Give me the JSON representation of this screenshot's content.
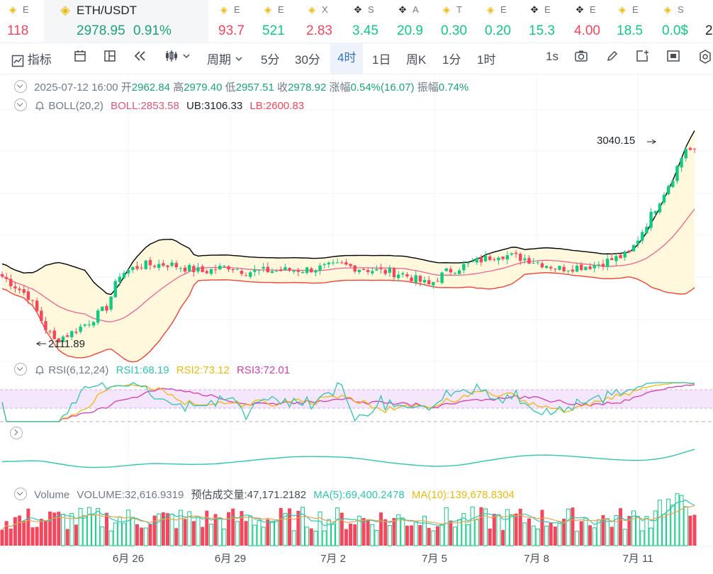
{
  "ticker": {
    "items": [
      {
        "icon": "bnb",
        "name": "E",
        "value": "118",
        "dir": "dn"
      },
      {
        "icon": "bnb",
        "name": "ETH/USDT",
        "value": "2978.95",
        "pct": "0.91%",
        "dir": "up",
        "active": true
      },
      {
        "icon": "bnb",
        "name": "E",
        "value": "93.7",
        "dir": "dn"
      },
      {
        "icon": "bnb",
        "name": "E",
        "value": "521",
        "dir": "up"
      },
      {
        "icon": "bnb",
        "name": "X",
        "value": "2.83",
        "dir": "dn"
      },
      {
        "icon": "ok",
        "name": "S",
        "value": "3.45",
        "dir": "up"
      },
      {
        "icon": "ok",
        "name": "A",
        "value": "20.9",
        "dir": "up"
      },
      {
        "icon": "bnb",
        "name": "T",
        "value": "0.30",
        "dir": "up"
      },
      {
        "icon": "bnb",
        "name": "E",
        "value": "0.20",
        "dir": "up"
      },
      {
        "icon": "ok",
        "name": "E",
        "value": "15.3",
        "dir": "up"
      },
      {
        "icon": "ok",
        "name": "E",
        "value": "4.00",
        "dir": "dn"
      },
      {
        "icon": "bnb",
        "name": "E",
        "value": "18.5",
        "dir": "up"
      },
      {
        "icon": "bnb",
        "name": "S",
        "value": "0.0$",
        "dir": "up"
      },
      {
        "icon": "none",
        "name": "",
        "value": "2",
        "dir": "plain"
      }
    ]
  },
  "toolbar": {
    "indicator": "指标",
    "period": "周期",
    "intervals": [
      "5分",
      "30分",
      "4时",
      "1日",
      "周K",
      "1分",
      "1时"
    ],
    "active_interval": "4时",
    "speed": "1s"
  },
  "ohlc": {
    "date": "2025-07-12 16:00",
    "open_label": "开",
    "open": "2962.84",
    "high_label": "高",
    "high": "2979.40",
    "low_label": "低",
    "low": "2957.51",
    "close_label": "收",
    "close": "2978.92",
    "change_label": "涨幅",
    "change": "0.54%(16.07)",
    "amp_label": "振幅",
    "amp": "0.74%"
  },
  "boll": {
    "label": "BOLL(20,2)",
    "mid": "BOLL:2853.58",
    "ub": "UB:3106.33",
    "lb": "LB:2600.83"
  },
  "rsi": {
    "label": "RSI(6,12,24)",
    "r1": "RSI1:68.19",
    "r2": "RSI2:73.12",
    "r3": "RSI3:72.01"
  },
  "volume": {
    "label": "Volume",
    "vol": "VOLUME:32,616.9319",
    "est": "预估成交量:47,171.2182",
    "ma5": "MA(5):69,400.2478",
    "ma10": "MA(10):139,678.8304"
  },
  "annotations": {
    "high": "3040.15",
    "low": "2111.89"
  },
  "x_labels": [
    "6月 26",
    "6月 29",
    "7月 2",
    "7月 5",
    "7月 8",
    "7月 11"
  ],
  "colors": {
    "up": "#0ecb81",
    "down": "#f6465d",
    "accent": "#3375bb",
    "boll_ub": "#000000",
    "boll_mid": "#f06292",
    "boll_lb": "#f44336",
    "boll_fill": "#fff8dc",
    "rsi1": "#2ec7b0",
    "rsi2": "#f0b90b",
    "rsi3": "#d63cb0",
    "ma5": "#f0b90b",
    "ma10": "#f0a050"
  }
}
